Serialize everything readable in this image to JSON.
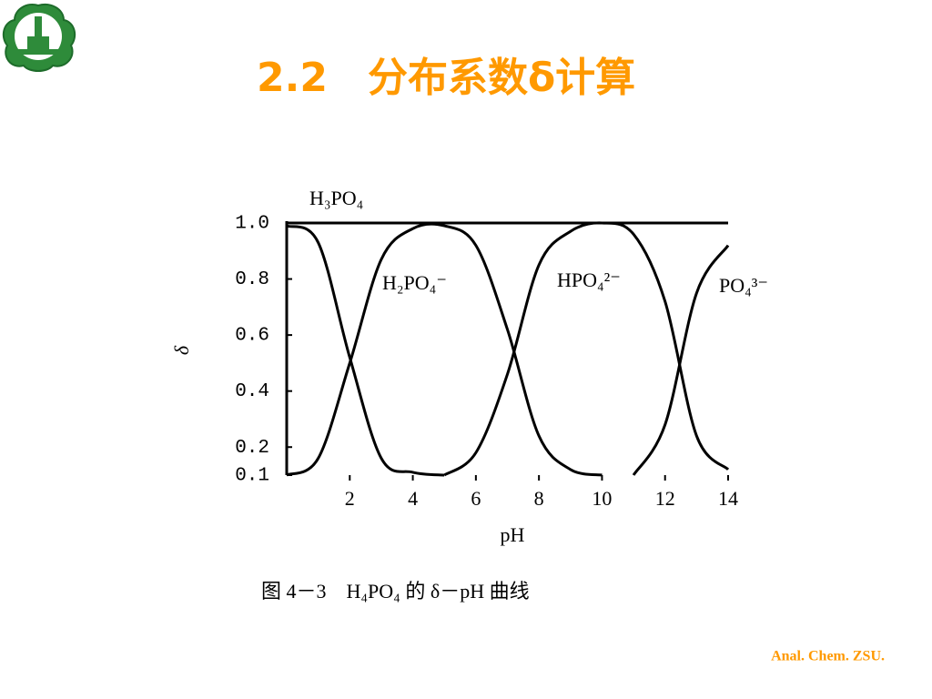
{
  "title": "2.2　分布系数δ计算",
  "caption": "图 4－3　H₄PO₄ 的 δ－pH 曲线",
  "footer": "Anal. Chem. ZSU.",
  "chart_data": {
    "type": "line",
    "x": [
      0,
      1,
      2,
      3,
      4,
      5,
      6,
      7,
      8,
      9,
      10,
      11,
      12,
      13,
      14
    ],
    "xlim": [
      0,
      14
    ],
    "xticks": [
      2,
      4,
      6,
      8,
      10,
      12,
      14
    ],
    "ylim": [
      0.1,
      1.0
    ],
    "yticks": [
      {
        "value": 1.0,
        "label": "1.0"
      },
      0.8,
      0.6,
      0.4,
      0.2,
      0.1
    ],
    "xlabel": "pH",
    "ylabel": "δ",
    "series": [
      {
        "name": "H₃PO₄",
        "color": "#000000",
        "values": [
          0.99,
          0.93,
          0.52,
          0.16,
          0.11,
          0.1,
          null,
          null,
          null,
          null,
          null,
          null,
          null,
          null,
          null
        ]
      },
      {
        "name": "H₂PO₄⁻",
        "color": "#000000",
        "values": [
          0.1,
          0.16,
          0.5,
          0.87,
          0.98,
          0.99,
          0.92,
          0.62,
          0.24,
          0.12,
          0.1,
          null,
          null,
          null,
          null
        ]
      },
      {
        "name": "HPO₄²⁻",
        "color": "#000000",
        "values": [
          null,
          null,
          null,
          null,
          null,
          0.1,
          0.18,
          0.46,
          0.85,
          0.97,
          1.0,
          0.96,
          0.72,
          0.24,
          0.12
        ]
      },
      {
        "name": "PO₄³⁻",
        "color": "#000000",
        "values": [
          null,
          null,
          null,
          null,
          null,
          null,
          null,
          null,
          null,
          null,
          null,
          0.1,
          0.28,
          0.75,
          0.92
        ]
      }
    ]
  }
}
